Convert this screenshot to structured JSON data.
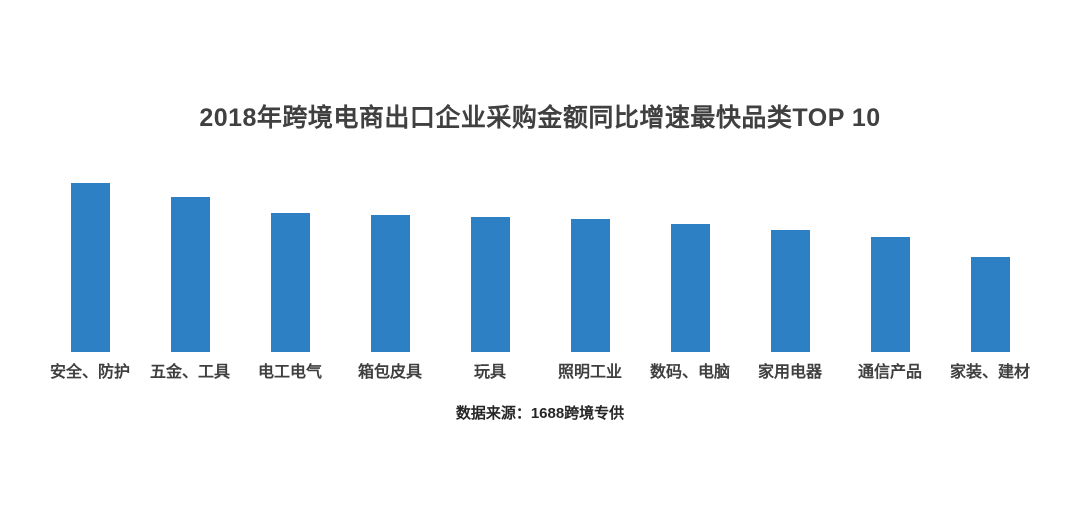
{
  "chart_data": {
    "type": "bar",
    "title": "2018年跨境电商出口企业采购金额同比增速最快品类TOP 10",
    "categories": [
      "安全、防护",
      "五金、工具",
      "电工电气",
      "箱包皮具",
      "玩具",
      "照明工业",
      "数码、电脑",
      "家用电器",
      "通信产品",
      "家装、建材"
    ],
    "values": [
      100,
      92,
      82,
      81,
      80,
      79,
      76,
      72,
      68,
      56
    ],
    "values_estimated": true,
    "xlabel": "",
    "ylabel": "",
    "ylim": [
      0,
      100
    ],
    "grid": false,
    "legend": false,
    "data_labels": false,
    "source": "数据来源：1688跨境专供"
  },
  "style": {
    "bar_color": "#2D80C3",
    "title_color": "#404040",
    "label_color": "#3F3F3F",
    "source_color": "#262626",
    "background": "#FFFFFF"
  }
}
